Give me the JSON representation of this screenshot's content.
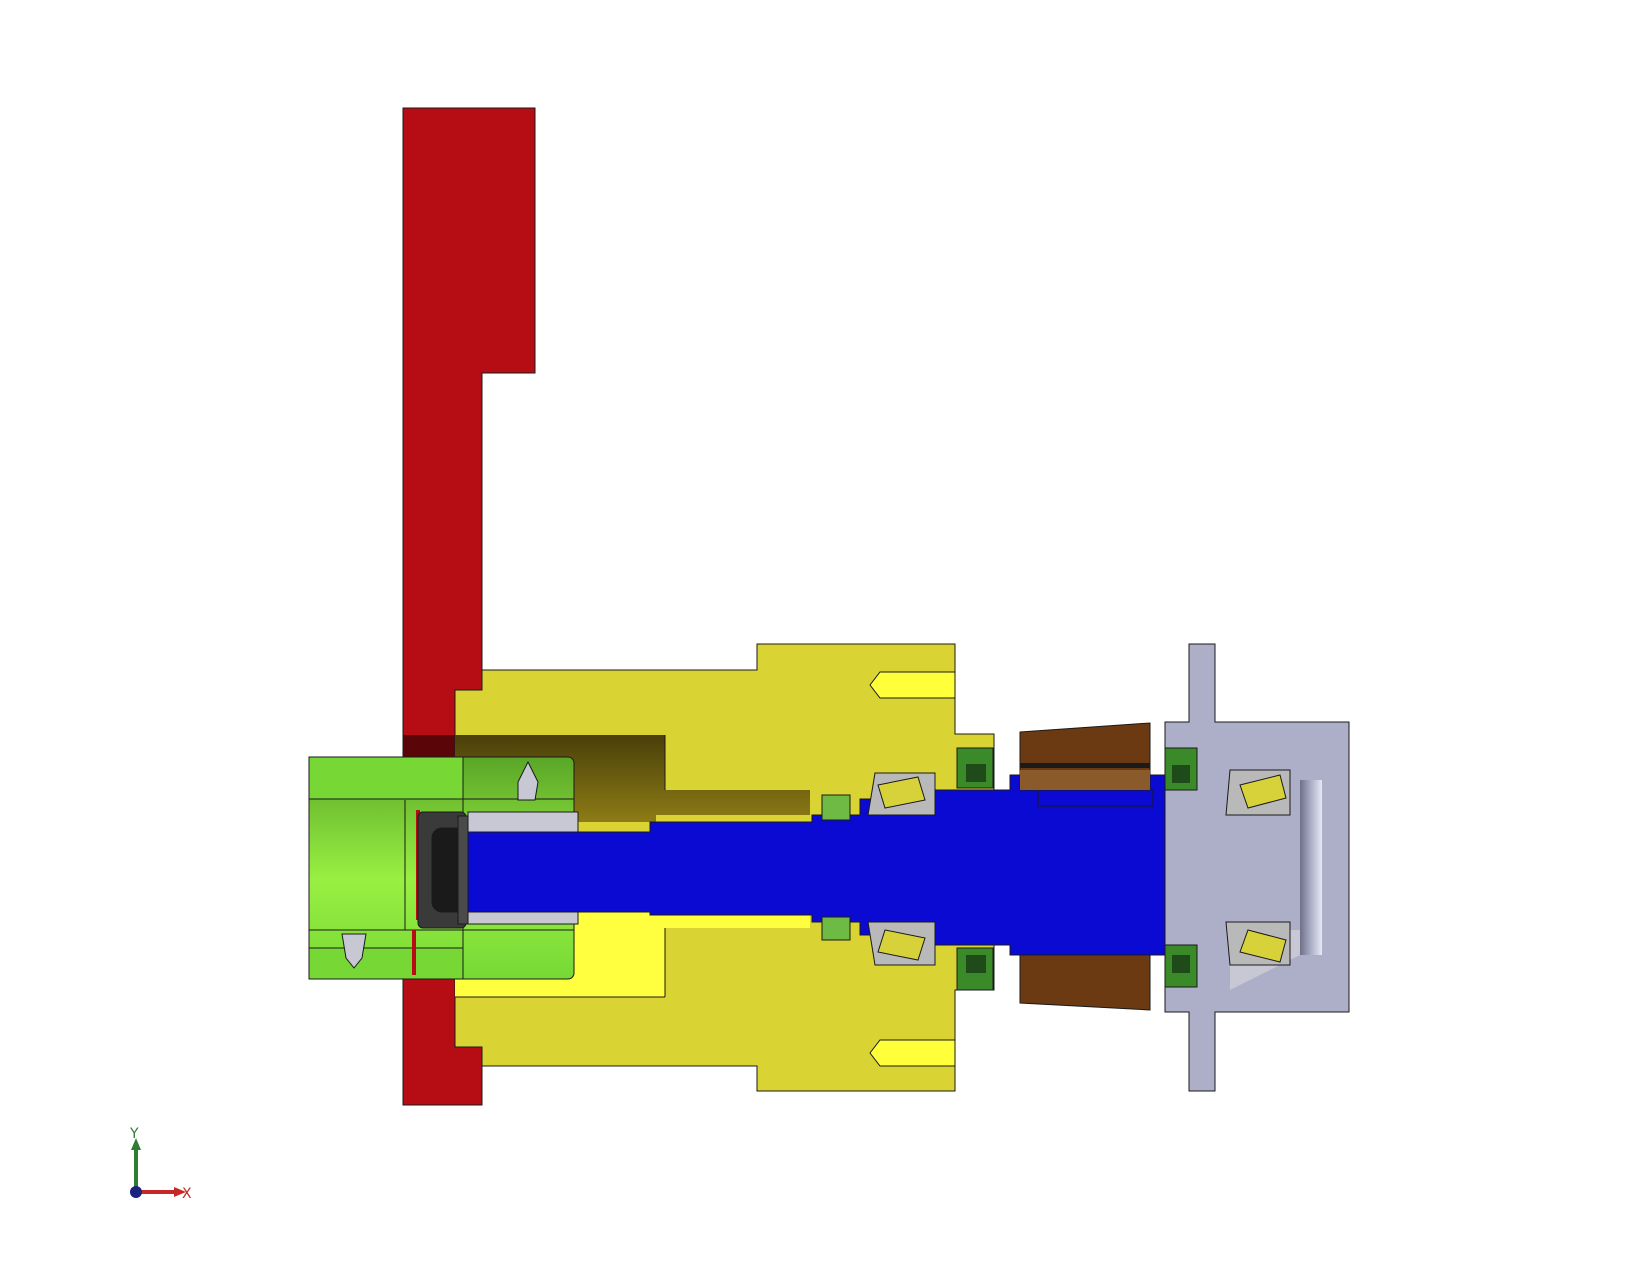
{
  "axis_triad": {
    "y_label": "Y",
    "x_label": "X",
    "y_color": "#2e7d32",
    "x_color": "#c62828",
    "origin_color": "#1a237e"
  },
  "palette": {
    "frame": "#b50d13",
    "frame_dark": "#5a0608",
    "housing": "#d9d433",
    "housing_shadow": "#6b5a10",
    "housing_light": "#ffff40",
    "shaft": "#0a0ad2",
    "coupling": "#77d835",
    "coupling_light": "#99f042",
    "coupling_dark": "#3e7a18",
    "gear": "#6b3a12",
    "cap": "#adaec8",
    "bearing_race": "#b9b9b9",
    "roller": "#d8d23a",
    "seal": "#3a8a2a",
    "bushing": "#c8c8d4"
  }
}
